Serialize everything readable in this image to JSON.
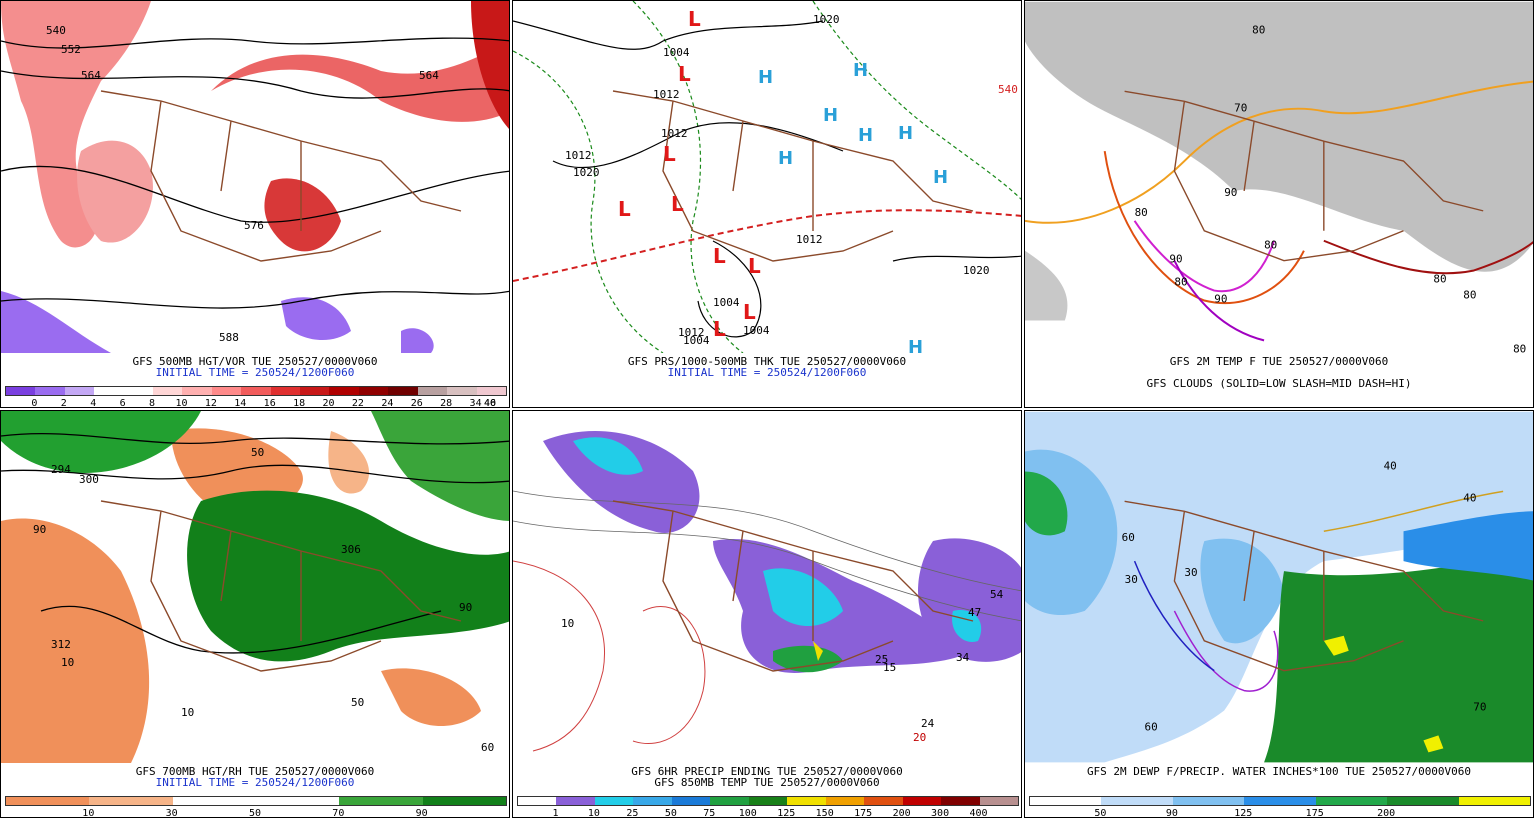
{
  "panels": [
    {
      "caption": "GFS 500MB HGT/VOR TUE 250527/0000V060",
      "subcaption": "INITIAL TIME = 250524/1200F060",
      "legend_ticks": [
        "0",
        "2",
        "4",
        "6",
        "8",
        "10",
        "12",
        "14",
        "16",
        "18",
        "20",
        "22",
        "24",
        "26",
        "28",
        "34",
        "40",
        "46"
      ],
      "legend_colors": [
        "#7a3fe0",
        "#9a6cf0",
        "#c4a8f5",
        "#ffffff",
        "#ffffff",
        "#ffd6d6",
        "#ffb0b0",
        "#ff8a8a",
        "#f25c5c",
        "#e03030",
        "#c81818",
        "#b00000",
        "#900000",
        "#700000",
        "#b8a0a0",
        "#d8c0c0",
        "#f0c8d0"
      ],
      "labels": [
        "540",
        "552",
        "564",
        "564",
        "576",
        "588"
      ]
    },
    {
      "caption": "GFS PRS/1000-500MB THK TUE 250527/0000V060",
      "subcaption": "INITIAL TIME = 250524/1200F060",
      "labels": [
        "1020",
        "1004",
        "1012",
        "1012",
        "1012",
        "1020",
        "1012",
        "1004",
        "1004",
        "1012",
        "1004",
        "1020",
        "540"
      ]
    },
    {
      "caption": "GFS 2M TEMP F TUE 250527/0000V060",
      "subcaption": "GFS CLOUDS (SOLID=LOW SLASH=MID DASH=HI)",
      "labels": [
        "80",
        "70",
        "80",
        "90",
        "80",
        "90",
        "80",
        "90",
        "80",
        "80",
        "80"
      ]
    },
    {
      "caption": "GFS 700MB HGT/RH TUE 250527/0000V060",
      "subcaption": "INITIAL TIME = 250524/1200F060",
      "legend_ticks": [
        "10",
        "30",
        "50",
        "70",
        "90"
      ],
      "legend_colors": [
        "#f0905a",
        "#f6b488",
        "#ffffff",
        "#ffffff",
        "#3aa53a",
        "#12801a"
      ],
      "labels": [
        "294",
        "300",
        "306",
        "312",
        "10",
        "90",
        "50",
        "90",
        "10",
        "50",
        "60"
      ]
    },
    {
      "caption": "GFS 6HR PRECIP ENDING TUE 250527/0000V060",
      "subcaption": "GFS 850MB TEMP TUE 250527/0000V060",
      "legend_ticks": [
        "1",
        "10",
        "25",
        "50",
        "75",
        "100",
        "125",
        "150",
        "175",
        "200",
        "300",
        "400"
      ],
      "legend_colors": [
        "#ffffff",
        "#8a60d8",
        "#22cde8",
        "#38a8e8",
        "#1a7ad8",
        "#20a040",
        "#188018",
        "#f0e000",
        "#f0a000",
        "#e05010",
        "#c00000",
        "#800000",
        "#b89090"
      ],
      "labels": [
        "10",
        "20",
        "15",
        "24",
        "34",
        "47",
        "54",
        "25",
        "20"
      ]
    },
    {
      "caption": "GFS 2M DEWP F/PRECIP. WATER INCHES*100 TUE 250527/0000V060",
      "subcaption": "",
      "legend_ticks": [
        "50",
        "90",
        "125",
        "175",
        "200"
      ],
      "legend_colors": [
        "#ffffff",
        "#c0dcf8",
        "#80c0f0",
        "#2a8ee8",
        "#22a84a",
        "#1a8a2a",
        "#f0f000"
      ],
      "labels": [
        "60",
        "30",
        "40",
        "30",
        "60",
        "40",
        "70"
      ]
    }
  ]
}
